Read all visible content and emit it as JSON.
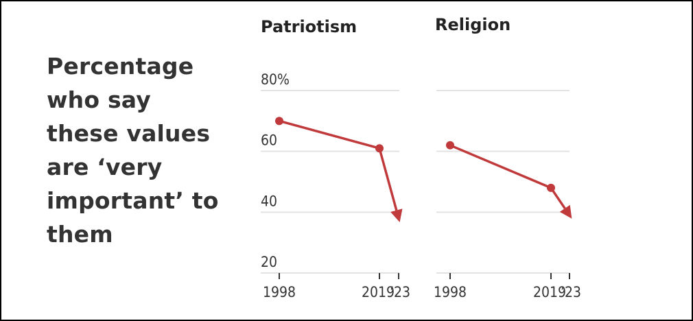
{
  "headline": "Percentage who say these values are ‘very important’ to them",
  "chart_data": [
    {
      "type": "line",
      "title": "Patriotism",
      "x": [
        1998,
        2019,
        2023
      ],
      "x_tick_labels": [
        "1998",
        "2019",
        "’23"
      ],
      "values": [
        70,
        61,
        38
      ],
      "y_ticks": [
        80,
        60,
        40,
        20
      ],
      "y_tick_labels": [
        "80%",
        "60",
        "40",
        "20"
      ],
      "ylim": [
        20,
        80
      ],
      "color": "#c0393b",
      "grid": true
    },
    {
      "type": "line",
      "title": "Religion",
      "x": [
        1998,
        2019,
        2023
      ],
      "x_tick_labels": [
        "1998",
        "2019",
        "’23"
      ],
      "values": [
        62,
        48,
        39
      ],
      "y_ticks": [
        80,
        60,
        40,
        20
      ],
      "y_tick_labels": [],
      "ylim": [
        20,
        80
      ],
      "color": "#c0393b",
      "grid": true
    }
  ]
}
